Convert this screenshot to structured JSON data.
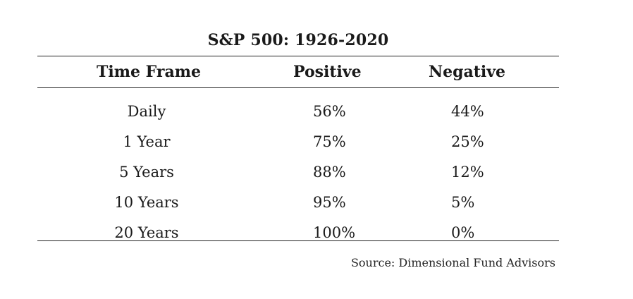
{
  "chart_data": {
    "type": "table",
    "title": "S&P 500: 1926-2020",
    "columns": [
      "Time Frame",
      "Positive",
      "Negative"
    ],
    "rows": [
      [
        "Daily",
        "56%",
        "44%"
      ],
      [
        "1 Year",
        "75%",
        "25%"
      ],
      [
        "5 Years",
        "88%",
        "12%"
      ],
      [
        "10 Years",
        "95%",
        "5%"
      ],
      [
        "20 Years",
        "100%",
        "0%"
      ]
    ],
    "source": "Source: Dimensional Fund Advisors"
  }
}
